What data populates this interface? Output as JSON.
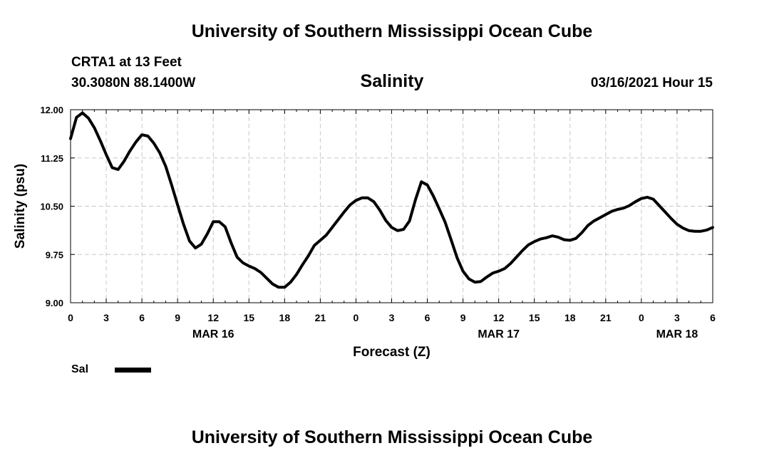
{
  "header": {
    "title": "University of Southern Mississippi Ocean Cube",
    "station": "CRTA1 at 13 Feet",
    "coords": "30.3080N 88.1400W",
    "parameter": "Salinity",
    "datetime": "03/16/2021 Hour 15"
  },
  "footer": {
    "title": "University of Southern Mississippi Ocean Cube"
  },
  "chart_data": {
    "type": "line",
    "title": "Salinity",
    "xlabel": "Forecast (Z)",
    "ylabel": "Salinity (psu)",
    "ylim": [
      9.0,
      12.0
    ],
    "yticks": [
      "9.00",
      "9.75",
      "10.50",
      "11.25",
      "12.00"
    ],
    "xlim": [
      0,
      54
    ],
    "xticks": [
      {
        "x": 0,
        "label": "0"
      },
      {
        "x": 3,
        "label": "3"
      },
      {
        "x": 6,
        "label": "6"
      },
      {
        "x": 9,
        "label": "9"
      },
      {
        "x": 12,
        "label": "12"
      },
      {
        "x": 15,
        "label": "15"
      },
      {
        "x": 18,
        "label": "18"
      },
      {
        "x": 21,
        "label": "21"
      },
      {
        "x": 24,
        "label": "0"
      },
      {
        "x": 27,
        "label": "3"
      },
      {
        "x": 30,
        "label": "6"
      },
      {
        "x": 33,
        "label": "9"
      },
      {
        "x": 36,
        "label": "12"
      },
      {
        "x": 39,
        "label": "15"
      },
      {
        "x": 42,
        "label": "18"
      },
      {
        "x": 45,
        "label": "21"
      },
      {
        "x": 48,
        "label": "0"
      },
      {
        "x": 51,
        "label": "3"
      },
      {
        "x": 54,
        "label": "6"
      }
    ],
    "date_labels": [
      {
        "x": 12,
        "label": "MAR 16"
      },
      {
        "x": 36,
        "label": "MAR 17"
      },
      {
        "x": 51,
        "label": "MAR 18"
      }
    ],
    "grid": true,
    "legend_position": "bottom-left",
    "series": [
      {
        "name": "Sal",
        "color": "#000000",
        "x": [
          0,
          0.5,
          1,
          1.5,
          2,
          2.5,
          3,
          3.5,
          4,
          4.5,
          5,
          5.5,
          6,
          6.5,
          7,
          7.5,
          8,
          8.5,
          9,
          9.5,
          10,
          10.5,
          11,
          11.5,
          12,
          12.5,
          13,
          13.5,
          14,
          14.5,
          15,
          15.5,
          16,
          16.5,
          17,
          17.5,
          18,
          18.5,
          19,
          19.5,
          20,
          20.5,
          21,
          21.5,
          22,
          22.5,
          23,
          23.5,
          24,
          24.5,
          25,
          25.5,
          26,
          26.5,
          27,
          27.5,
          28,
          28.5,
          29,
          29.5,
          30,
          30.5,
          31,
          31.5,
          32,
          32.5,
          33,
          33.5,
          34,
          34.5,
          35,
          35.5,
          36,
          36.5,
          37,
          37.5,
          38,
          38.5,
          39,
          39.5,
          40,
          40.5,
          41,
          41.5,
          42,
          42.5,
          43,
          43.5,
          44,
          44.5,
          45,
          45.5,
          46,
          46.5,
          47,
          47.5,
          48,
          48.5,
          49,
          49.5,
          50,
          50.5,
          51,
          51.5,
          52,
          52.5,
          53,
          53.5,
          54
        ],
        "values": [
          11.55,
          11.88,
          11.95,
          11.87,
          11.72,
          11.52,
          11.3,
          11.1,
          11.07,
          11.2,
          11.36,
          11.5,
          11.61,
          11.59,
          11.48,
          11.33,
          11.12,
          10.83,
          10.52,
          10.22,
          9.96,
          9.85,
          9.91,
          10.07,
          10.26,
          10.26,
          10.18,
          9.93,
          9.71,
          9.62,
          9.57,
          9.53,
          9.47,
          9.38,
          9.29,
          9.24,
          9.24,
          9.32,
          9.44,
          9.59,
          9.73,
          9.89,
          9.97,
          10.05,
          10.17,
          10.29,
          10.41,
          10.52,
          10.59,
          10.63,
          10.63,
          10.57,
          10.44,
          10.28,
          10.17,
          10.12,
          10.14,
          10.27,
          10.6,
          10.88,
          10.83,
          10.66,
          10.46,
          10.25,
          9.98,
          9.7,
          9.49,
          9.37,
          9.32,
          9.33,
          9.4,
          9.46,
          9.49,
          9.53,
          9.61,
          9.71,
          9.81,
          9.9,
          9.95,
          9.99,
          10.01,
          10.04,
          10.02,
          9.98,
          9.97,
          10.0,
          10.09,
          10.2,
          10.27,
          10.32,
          10.37,
          10.42,
          10.45,
          10.47,
          10.51,
          10.57,
          10.62,
          10.64,
          10.61,
          10.51,
          10.41,
          10.31,
          10.22,
          10.16,
          10.12,
          10.11,
          10.11,
          10.13,
          10.17
        ]
      }
    ]
  }
}
